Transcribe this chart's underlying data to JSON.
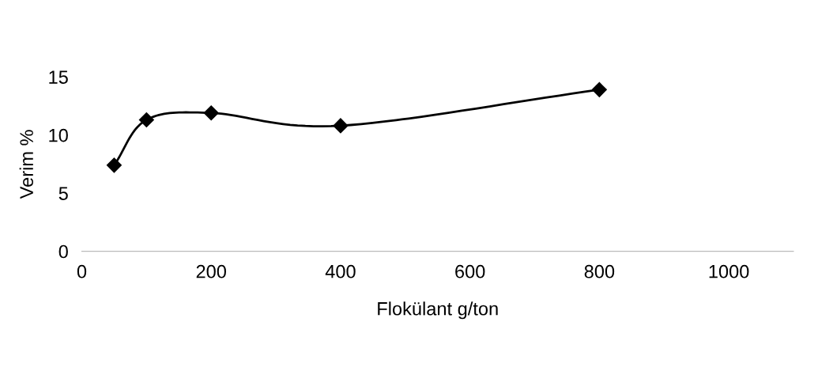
{
  "chart_data": {
    "type": "line",
    "xlabel": "Flokülant g/ton",
    "ylabel": "Verim %",
    "x": [
      50,
      100,
      200,
      400,
      800
    ],
    "series": [
      {
        "color": "#000000",
        "values": [
          7.4,
          11.3,
          11.9,
          10.8,
          13.9
        ]
      }
    ],
    "xlim": [
      0,
      1100
    ],
    "xticks": [
      0,
      200,
      400,
      600,
      800,
      1000
    ],
    "ylim": [
      0,
      15
    ],
    "yticks": [
      0,
      5,
      10,
      15
    ],
    "marker": "diamond",
    "line_style": "solid",
    "grid": false,
    "legend": false
  }
}
